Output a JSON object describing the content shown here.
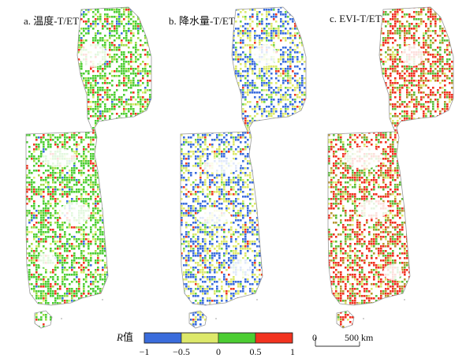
{
  "panels": [
    {
      "id": "a",
      "title": "a. 温度-T/ET",
      "colors": [
        "#4ccd33",
        "#9edb45",
        "#dcee6a",
        "#f2331f",
        "#3b6fe0"
      ],
      "weights": [
        0.62,
        0.12,
        0.08,
        0.14,
        0.04
      ]
    },
    {
      "id": "b",
      "title": "b. 降水量-T/ET",
      "colors": [
        "#3a6cdc",
        "#dde86a",
        "#6ad24a",
        "#ee3a20"
      ],
      "weights": [
        0.45,
        0.4,
        0.1,
        0.05
      ]
    },
    {
      "id": "c",
      "title": "c. EVI-T/ET",
      "colors": [
        "#f03020",
        "#5cbc3a",
        "#b7962e",
        "#dde86a"
      ],
      "weights": [
        0.45,
        0.25,
        0.2,
        0.1
      ]
    }
  ],
  "legend": {
    "title_italic": "R",
    "title_suffix": "值",
    "bins": [
      {
        "from": -1,
        "to": -0.5,
        "color": "#3a6cdc"
      },
      {
        "from": -0.5,
        "to": 0,
        "color": "#dde86a"
      },
      {
        "from": 0,
        "to": 0.5,
        "color": "#4ccd33"
      },
      {
        "from": 0.5,
        "to": 1,
        "color": "#f2331f"
      }
    ],
    "tick_labels": [
      "−1",
      "−0.5",
      "0",
      "0.5",
      "1"
    ]
  },
  "scale_bar": {
    "start_label": "0",
    "end_label": "500 km"
  }
}
